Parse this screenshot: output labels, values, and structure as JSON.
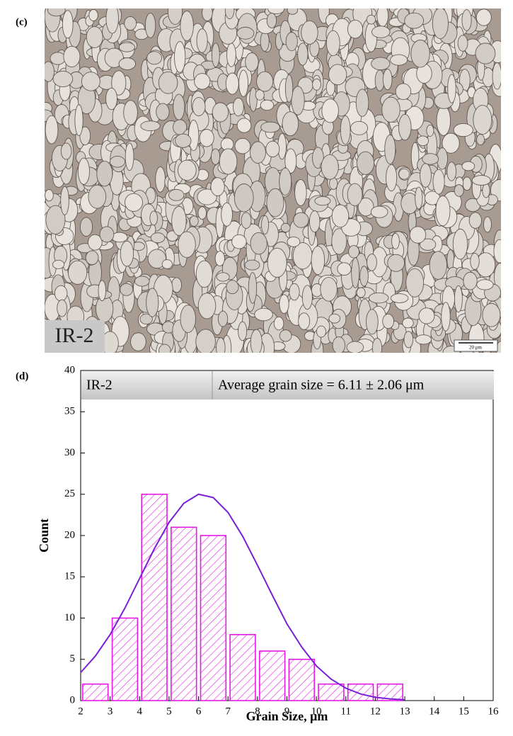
{
  "figure": {
    "panel_c": {
      "label": "(c)",
      "sample_label": "IR-2",
      "scale_bar": "20 μm"
    },
    "panel_d": {
      "label": "(d)"
    }
  },
  "chart_data": {
    "type": "histogram",
    "bins": [
      2,
      3,
      4,
      5,
      6,
      7,
      8,
      9,
      10,
      11,
      12,
      13
    ],
    "counts": [
      2,
      10,
      25,
      21,
      20,
      8,
      6,
      5,
      2,
      2,
      2
    ],
    "color": "#e619e6",
    "curve": {
      "type": "line",
      "color": "#7a1fd6",
      "x": [
        2,
        2.5,
        3,
        3.5,
        4,
        4.5,
        5,
        5.5,
        6,
        6.5,
        7,
        7.5,
        8,
        8.5,
        9,
        9.5,
        10,
        10.5,
        11,
        11.5,
        12,
        12.5,
        13
      ],
      "values": [
        3.4,
        5.4,
        8.0,
        11.2,
        14.8,
        18.4,
        21.6,
        23.9,
        25.0,
        24.6,
        22.8,
        19.9,
        16.4,
        12.8,
        9.3,
        6.5,
        4.2,
        2.6,
        1.5,
        0.8,
        0.4,
        0.2,
        0.1
      ]
    },
    "annotations": [
      "IR-2",
      "Average grain size = 6.11 ± 2.06 μm"
    ],
    "xlabel": "Grain Size, μm",
    "ylabel": "Count",
    "xlim": [
      2,
      16
    ],
    "ylim": [
      0,
      40
    ],
    "xticks": [
      2,
      3,
      4,
      5,
      6,
      7,
      8,
      9,
      10,
      11,
      12,
      13,
      14,
      15,
      16
    ],
    "yticks": [
      0,
      5,
      10,
      15,
      20,
      25,
      30,
      35,
      40
    ]
  }
}
